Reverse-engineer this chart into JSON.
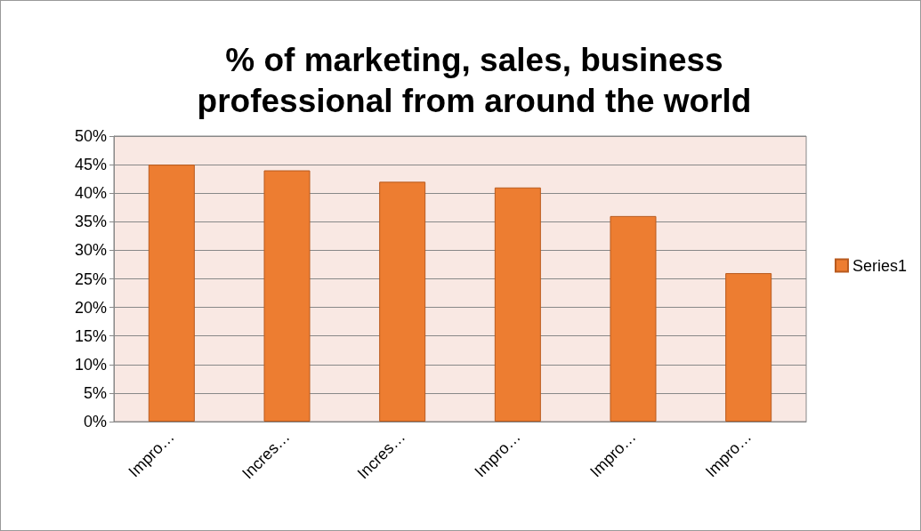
{
  "chart_data": {
    "type": "bar",
    "title": "% of marketing, sales, business\nprofessional from around the world",
    "categories": [
      "Impro…",
      "Incres…",
      "Incres…",
      "Impro…",
      "Impro…",
      "Impro…"
    ],
    "series": [
      {
        "name": "Series1",
        "color": "#ed7d31",
        "values": [
          45,
          44,
          42,
          41,
          36,
          26
        ]
      }
    ],
    "ylim": [
      0,
      50
    ],
    "yticks": [
      {
        "value": 0,
        "label": "0%"
      },
      {
        "value": 5,
        "label": "5%"
      },
      {
        "value": 10,
        "label": "10%"
      },
      {
        "value": 15,
        "label": "15%"
      },
      {
        "value": 20,
        "label": "20%"
      },
      {
        "value": 25,
        "label": "25%"
      },
      {
        "value": 30,
        "label": "30%"
      },
      {
        "value": 35,
        "label": "35%"
      },
      {
        "value": 40,
        "label": "40%"
      },
      {
        "value": 45,
        "label": "45%"
      },
      {
        "value": 50,
        "label": "50%"
      }
    ],
    "grid": "y",
    "legend": "right"
  }
}
